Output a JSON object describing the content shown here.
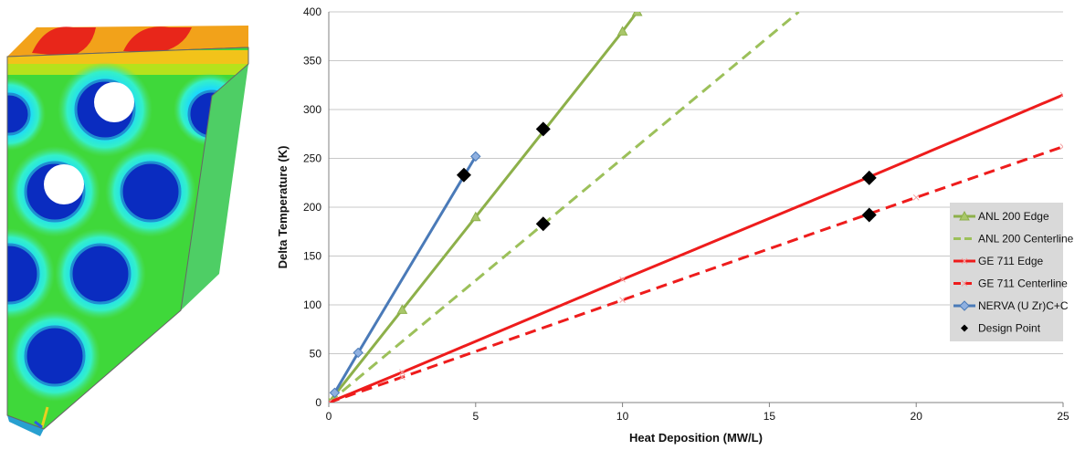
{
  "colors": {
    "anl": "#8db04a",
    "ge": "#ee1c1c",
    "nerva": "#4a7ab8",
    "design": "#000000",
    "legend_bg": "#d9d9d9"
  },
  "chart_data": {
    "type": "line",
    "xlabel": "Heat Deposition (MW/L)",
    "ylabel": "Delta Temperature (K)",
    "xlim": [
      0,
      25
    ],
    "ylim": [
      0,
      400
    ],
    "x_ticks": [
      0,
      5,
      10,
      15,
      20,
      25
    ],
    "y_ticks": [
      0,
      50,
      100,
      150,
      200,
      250,
      300,
      350,
      400
    ],
    "grid": "horizontal",
    "legend_position": "right",
    "series": [
      {
        "name": "ANL 200 Edge",
        "style": "solid",
        "color": "#8db04a",
        "marker": "triangle",
        "x": [
          0,
          2.5,
          5,
          10,
          10.5
        ],
        "y": [
          0,
          95,
          190,
          380,
          400
        ]
      },
      {
        "name": "ANL 200 Centerline",
        "style": "dashed",
        "color": "#9cc05a",
        "marker": "none",
        "x": [
          0,
          16
        ],
        "y": [
          0,
          400
        ]
      },
      {
        "name": "GE 711 Edge",
        "style": "solid",
        "color": "#ee1c1c",
        "marker": "x",
        "x": [
          0,
          2.5,
          10,
          18.4,
          25
        ],
        "y": [
          0,
          31,
          126,
          231,
          315
        ]
      },
      {
        "name": "GE 711 Centerline",
        "style": "dashed",
        "color": "#ee1c1c",
        "marker": "x",
        "x": [
          0,
          2.5,
          10,
          20,
          25
        ],
        "y": [
          0,
          26,
          105,
          210,
          262
        ]
      },
      {
        "name": "NERVA (U Zr)C+C",
        "style": "solid",
        "color": "#4a7ab8",
        "marker": "diamond",
        "x": [
          0.2,
          1,
          5
        ],
        "y": [
          10,
          51,
          252
        ]
      },
      {
        "name": "Design Point",
        "style": "none",
        "color": "#000000",
        "marker": "diamond-filled",
        "x": [
          4.6,
          7.3,
          7.3,
          18.4,
          18.4
        ],
        "y": [
          233,
          280,
          183,
          230,
          192
        ]
      }
    ]
  }
}
